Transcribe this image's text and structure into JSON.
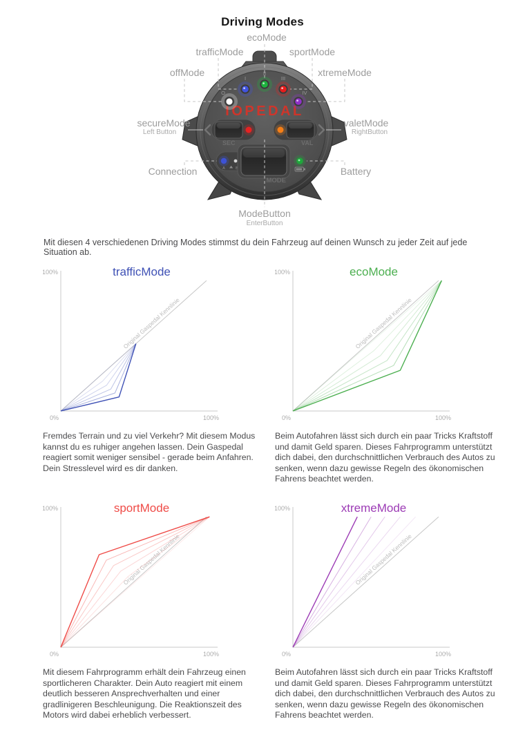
{
  "page": {
    "title": "Driving Modes",
    "intro": "Mit diesen 4 verschiedenen Driving Modes stimmst du dein Fahrzeug auf deinen Wunsch zu jeder Zeit auf jede Situation ab."
  },
  "device": {
    "logo": "IOPEDAL",
    "callouts": {
      "eco": "ecoMode",
      "traffic": "trafficMode",
      "sport": "sportMode",
      "off": "offMode",
      "xtreme": "xtremeMode",
      "secure_label": "secureMode",
      "secure_sub": "Left Button",
      "valet_label": "valetMode",
      "valet_sub": "RightButton",
      "connection": "Connection",
      "battery": "Battery",
      "mode_label": "ModeButton",
      "mode_sub": "EnterButton"
    },
    "leds": [
      {
        "numeral": "O",
        "mode": "offMode",
        "color": "#ffffff"
      },
      {
        "numeral": "I",
        "mode": "trafficMode",
        "color": "#4153e0"
      },
      {
        "numeral": "II",
        "mode": "ecoMode",
        "color": "#1db33e"
      },
      {
        "numeral": "III",
        "mode": "sportMode",
        "color": "#ea1c1c"
      },
      {
        "numeral": "IV",
        "mode": "xtremeMode",
        "color": "#9031c9"
      }
    ],
    "status_leds": {
      "sec_color": "#e62222",
      "val_color": "#f57f17",
      "connection_color": "#3d52d5",
      "battery_color": "#1fa73b"
    },
    "panel": {
      "sec": "SEC",
      "val": "VAL",
      "mode": "MODE",
      "ab_a": "A",
      "ab_b": "B"
    }
  },
  "chart_data": [
    {
      "type": "line",
      "title": "trafficMode",
      "color": "#3f51b5",
      "xlim": [
        0,
        100
      ],
      "ylim": [
        0,
        100
      ],
      "grid": false,
      "x_tick_labels": [
        "0%",
        "100%"
      ],
      "y_tick_labels": [
        "100%"
      ],
      "reference_line": {
        "label": "Original Gaspedal Kennlinie",
        "points": [
          [
            0,
            0
          ],
          [
            95,
            93
          ]
        ]
      },
      "series": [
        {
          "name": "traffic-main",
          "opacity": 1,
          "width": 1.4,
          "points": [
            [
              0,
              0
            ],
            [
              38,
              10
            ],
            [
              49,
              48
            ]
          ]
        },
        {
          "name": "traffic-fade-1",
          "opacity": 0.45,
          "width": 1,
          "points": [
            [
              0,
              0
            ],
            [
              35.3,
              12.8
            ],
            [
              49,
              48
            ]
          ]
        },
        {
          "name": "traffic-fade-2",
          "opacity": 0.34,
          "width": 1,
          "points": [
            [
              0,
              0
            ],
            [
              32.6,
              15.6
            ],
            [
              49,
              48
            ]
          ]
        },
        {
          "name": "traffic-fade-3",
          "opacity": 0.26,
          "width": 1,
          "points": [
            [
              0,
              0
            ],
            [
              29.9,
              18.4
            ],
            [
              49,
              48
            ]
          ]
        },
        {
          "name": "traffic-fade-4",
          "opacity": 0.19,
          "width": 1,
          "points": [
            [
              0,
              0
            ],
            [
              27.2,
              21.2
            ],
            [
              49,
              48
            ]
          ]
        },
        {
          "name": "traffic-fade-5",
          "opacity": 0.13,
          "width": 1,
          "points": [
            [
              0,
              0
            ],
            [
              24.5,
              24
            ],
            [
              49,
              48
            ]
          ]
        }
      ],
      "description": "Fremdes Terrain und zu viel Verkehr? Mit diesem Modus kannst du es ruhiger angehen lassen. Dein Gaspedal reagiert somit weniger sensibel - gerade beim Anfahren.\nDein Stresslevel wird es dir danken."
    },
    {
      "type": "line",
      "title": "ecoMode",
      "color": "#4caf50",
      "xlim": [
        0,
        100
      ],
      "ylim": [
        0,
        100
      ],
      "grid": false,
      "x_tick_labels": [
        "0%",
        "100%"
      ],
      "y_tick_labels": [
        "100%"
      ],
      "reference_line": {
        "label": "Original Gaspedal Kennlinie",
        "points": [
          [
            0,
            0
          ],
          [
            95,
            93
          ]
        ]
      },
      "series": [
        {
          "name": "eco-main",
          "opacity": 1,
          "width": 1.4,
          "points": [
            [
              0,
              0
            ],
            [
              70,
              29
            ],
            [
              97,
              93
            ]
          ]
        },
        {
          "name": "eco-fade-1",
          "opacity": 0.42,
          "width": 1,
          "points": [
            [
              0,
              0
            ],
            [
              65.7,
              32.5
            ],
            [
              97,
              93
            ]
          ]
        },
        {
          "name": "eco-fade-2",
          "opacity": 0.32,
          "width": 1,
          "points": [
            [
              0,
              0
            ],
            [
              61.4,
              36
            ],
            [
              97,
              93
            ]
          ]
        },
        {
          "name": "eco-fade-3",
          "opacity": 0.24,
          "width": 1,
          "points": [
            [
              0,
              0
            ],
            [
              57.1,
              39.5
            ],
            [
              97,
              93
            ]
          ]
        },
        {
          "name": "eco-fade-4",
          "opacity": 0.18,
          "width": 1,
          "points": [
            [
              0,
              0
            ],
            [
              52.8,
              43
            ],
            [
              97,
              93
            ]
          ]
        },
        {
          "name": "eco-fade-5",
          "opacity": 0.12,
          "width": 1,
          "points": [
            [
              0,
              0
            ],
            [
              48.5,
              46.5
            ],
            [
              97,
              93
            ]
          ]
        }
      ],
      "description": "Beim Autofahren lässt sich durch ein paar Tricks Kraftstoff und damit Geld sparen. Dieses Fahrprogramm unterstützt dich dabei, den durchschnittlichen Verbrauch des Autos zu senken,  wenn dazu gewisse Regeln des ökonomischen Fahrens beachtet werden."
    },
    {
      "type": "line",
      "title": "sportMode",
      "color": "#ef4b47",
      "xlim": [
        0,
        100
      ],
      "ylim": [
        0,
        100
      ],
      "grid": false,
      "x_tick_labels": [
        "0%",
        "100%"
      ],
      "y_tick_labels": [
        "100%"
      ],
      "reference_line": {
        "label": "Original Gaspedal Kennlinie",
        "points": [
          [
            0,
            0
          ],
          [
            95,
            93
          ]
        ]
      },
      "series": [
        {
          "name": "sport-main",
          "opacity": 1,
          "width": 1.4,
          "points": [
            [
              0,
              0
            ],
            [
              25,
              66
            ],
            [
              97,
              93
            ]
          ]
        },
        {
          "name": "sport-fade-1",
          "opacity": 0.4,
          "width": 1,
          "points": [
            [
              0,
              0
            ],
            [
              29.7,
              62.1
            ],
            [
              97,
              93
            ]
          ]
        },
        {
          "name": "sport-fade-2",
          "opacity": 0.3,
          "width": 1,
          "points": [
            [
              0,
              0
            ],
            [
              34.4,
              58.2
            ],
            [
              97,
              93
            ]
          ]
        },
        {
          "name": "sport-fade-3",
          "opacity": 0.22,
          "width": 1,
          "points": [
            [
              0,
              0
            ],
            [
              39.1,
              54.3
            ],
            [
              97,
              93
            ]
          ]
        },
        {
          "name": "sport-fade-4",
          "opacity": 0.16,
          "width": 1,
          "points": [
            [
              0,
              0
            ],
            [
              43.8,
              50.4
            ],
            [
              97,
              93
            ]
          ]
        },
        {
          "name": "sport-fade-5",
          "opacity": 0.11,
          "width": 1,
          "points": [
            [
              0,
              0
            ],
            [
              48.5,
              46.5
            ],
            [
              97,
              93
            ]
          ]
        }
      ],
      "description": "Mit diesem Fahrprogramm erhält dein Fahrzeug einen sportlicheren Charakter. Dein Auto reagiert mit einem deutlich besseren Ansprechverhalten und einer gradlinigeren Beschleunigung. Die Reaktionszeit des Motors wird dabei erheblich verbessert."
    },
    {
      "type": "line",
      "title": "xtremeMode",
      "color": "#9c3bb5",
      "xlim": [
        0,
        100
      ],
      "ylim": [
        0,
        100
      ],
      "grid": false,
      "x_tick_labels": [
        "0%",
        "100%"
      ],
      "y_tick_labels": [
        "100%"
      ],
      "reference_line": {
        "label": "Original Gaspedal Kennlinie",
        "points": [
          [
            0,
            0
          ],
          [
            95,
            93
          ]
        ]
      },
      "series": [
        {
          "name": "xtreme-main",
          "opacity": 1,
          "width": 1.4,
          "points": [
            [
              0,
              0
            ],
            [
              42,
              93
            ]
          ]
        },
        {
          "name": "xtreme-fade-1",
          "opacity": 0.4,
          "width": 1,
          "points": [
            [
              0,
              0
            ],
            [
              51,
              93
            ]
          ]
        },
        {
          "name": "xtreme-fade-2",
          "opacity": 0.28,
          "width": 1,
          "points": [
            [
              0,
              0
            ],
            [
              60,
              93
            ]
          ]
        },
        {
          "name": "xtreme-fade-3",
          "opacity": 0.2,
          "width": 1,
          "points": [
            [
              0,
              0
            ],
            [
              70,
              93
            ]
          ]
        },
        {
          "name": "xtreme-fade-4",
          "opacity": 0.13,
          "width": 1,
          "points": [
            [
              0,
              0
            ],
            [
              80,
              93
            ]
          ]
        }
      ],
      "description": "Beim Autofahren lässt sich durch ein paar Tricks Kraftstoff und damit Geld sparen. Dieses Fahrprogramm unterstützt dich dabei, den durchschnittlichen Verbrauch des Autos zu senken,  wenn dazu gewisse Regeln des ökonomischen Fahrens beachtet werden."
    }
  ]
}
